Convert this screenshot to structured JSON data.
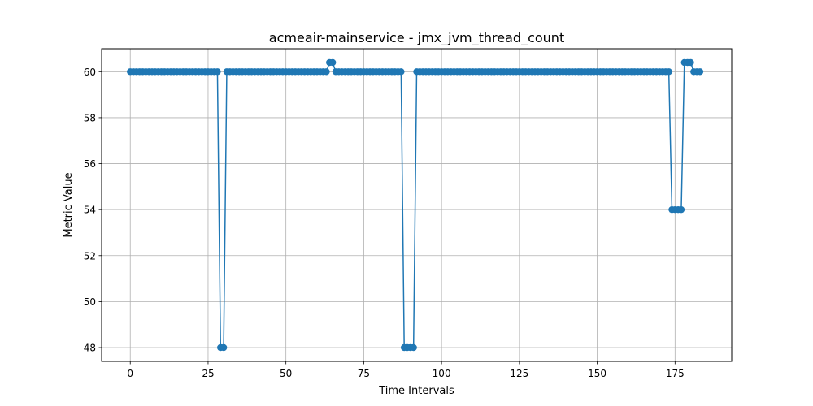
{
  "chart_data": {
    "type": "line",
    "title": "acmeair-mainservice - jmx_jvm_thread_count",
    "xlabel": "Time Intervals",
    "ylabel": "Metric Value",
    "xlim": [
      -9.2,
      193.2
    ],
    "ylim": [
      47.4,
      61.0
    ],
    "xticks": [
      0,
      25,
      50,
      75,
      100,
      125,
      150,
      175
    ],
    "yticks": [
      48,
      50,
      52,
      54,
      56,
      58,
      60
    ],
    "grid": true,
    "marker": "circle",
    "color": "#1f77b4",
    "series": [
      {
        "values": [
          60,
          60,
          60,
          60,
          60,
          60,
          60,
          60,
          60,
          60,
          60,
          60,
          60,
          60,
          60,
          60,
          60,
          60,
          60,
          60,
          60,
          60,
          60,
          60,
          60,
          60,
          60,
          60,
          60,
          48,
          48,
          60,
          60,
          60,
          60,
          60,
          60,
          60,
          60,
          60,
          60,
          60,
          60,
          60,
          60,
          60,
          60,
          60,
          60,
          60,
          60,
          60,
          60,
          60,
          60,
          60,
          60,
          60,
          60,
          60,
          60,
          60,
          60,
          60,
          60.4,
          60.4,
          60,
          60,
          60,
          60,
          60,
          60,
          60,
          60,
          60,
          60,
          60,
          60,
          60,
          60,
          60,
          60,
          60,
          60,
          60,
          60,
          60,
          60,
          48,
          48,
          48,
          48,
          60,
          60,
          60,
          60,
          60,
          60,
          60,
          60,
          60,
          60,
          60,
          60,
          60,
          60,
          60,
          60,
          60,
          60,
          60,
          60,
          60,
          60,
          60,
          60,
          60,
          60,
          60,
          60,
          60,
          60,
          60,
          60,
          60,
          60,
          60,
          60,
          60,
          60,
          60,
          60,
          60,
          60,
          60,
          60,
          60,
          60,
          60,
          60,
          60,
          60,
          60,
          60,
          60,
          60,
          60,
          60,
          60,
          60,
          60,
          60,
          60,
          60,
          60,
          60,
          60,
          60,
          60,
          60,
          60,
          60,
          60,
          60,
          60,
          60,
          60,
          60,
          60,
          60,
          60,
          60,
          60,
          60,
          54,
          54,
          54,
          54,
          60.4,
          60.4,
          60.4,
          60,
          60,
          60
        ]
      }
    ]
  }
}
